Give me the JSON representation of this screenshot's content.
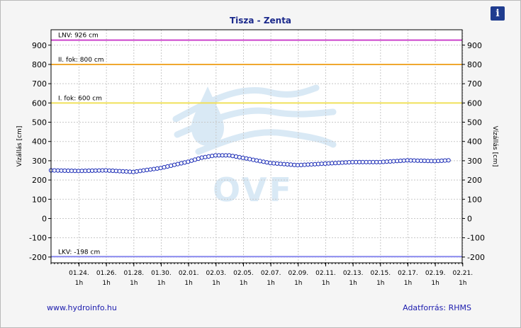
{
  "title": "Tisza - Zenta",
  "info_icon": "info-icon",
  "footer": {
    "link_text": "www.hydroinfo.hu",
    "source_text": "Adatforrás: RHMS"
  },
  "watermark": {
    "text": "OVF"
  },
  "colors": {
    "title": "#1c2a8c",
    "series": "#1a2bb5",
    "lnv": "#cc44cc",
    "second_degree": "#f0a830",
    "first_degree": "#f0e05a",
    "lkv": "#8888ee",
    "background": "#f5f5f5",
    "plot_background": "#ffffff",
    "watermark": "#d9e9f5"
  },
  "chart_data": {
    "type": "line",
    "title": "Tisza - Zenta",
    "ylabel": "Vízállás [cm]",
    "ylabel_right": "Vízállás [cm]",
    "ylim": [
      -230,
      980
    ],
    "yticks": [
      -200,
      -100,
      0,
      100,
      200,
      300,
      400,
      500,
      600,
      700,
      800,
      900
    ],
    "grid": true,
    "x_start": "2025-01-22 00:00",
    "x_end": "2025-02-21 00:00",
    "xticks": [
      {
        "date": "01.24.",
        "hour": "1h"
      },
      {
        "date": "01.26.",
        "hour": "1h"
      },
      {
        "date": "01.28.",
        "hour": "1h"
      },
      {
        "date": "01.30.",
        "hour": "1h"
      },
      {
        "date": "02.01.",
        "hour": "1h"
      },
      {
        "date": "02.03.",
        "hour": "1h"
      },
      {
        "date": "02.05.",
        "hour": "1h"
      },
      {
        "date": "02.07.",
        "hour": "1h"
      },
      {
        "date": "02.09.",
        "hour": "1h"
      },
      {
        "date": "02.11.",
        "hour": "1h"
      },
      {
        "date": "02.13.",
        "hour": "1h"
      },
      {
        "date": "02.15.",
        "hour": "1h"
      },
      {
        "date": "02.17.",
        "hour": "1h"
      },
      {
        "date": "02.19.",
        "hour": "1h"
      },
      {
        "date": "02.21.",
        "hour": "1h"
      }
    ],
    "reference_lines": [
      {
        "label": "LNV: 926 cm",
        "value": 926,
        "color": "#cc44cc"
      },
      {
        "label": "II. fok: 800 cm",
        "value": 800,
        "color": "#f0a830"
      },
      {
        "label": "I. fok: 600 cm",
        "value": 600,
        "color": "#f0e05a"
      },
      {
        "label": "LKV: -198 cm",
        "value": -198,
        "color": "#8888ee"
      }
    ],
    "series": [
      {
        "points": [
          [
            "2025-01-22 00:00",
            250
          ],
          [
            "2025-01-24 00:00",
            247
          ],
          [
            "2025-01-26 00:00",
            250
          ],
          [
            "2025-01-28 00:00",
            242
          ],
          [
            "2025-01-30 00:00",
            262
          ],
          [
            "2025-02-01 00:00",
            295
          ],
          [
            "2025-02-02 00:00",
            316
          ],
          [
            "2025-02-03 00:00",
            328
          ],
          [
            "2025-02-04 00:00",
            328
          ],
          [
            "2025-02-05 00:00",
            315
          ],
          [
            "2025-02-07 00:00",
            288
          ],
          [
            "2025-02-09 00:00",
            277
          ],
          [
            "2025-02-11 00:00",
            285
          ],
          [
            "2025-02-13 00:00",
            293
          ],
          [
            "2025-02-15 00:00",
            293
          ],
          [
            "2025-02-17 00:00",
            302
          ],
          [
            "2025-02-19 00:00",
            298
          ],
          [
            "2025-02-20 00:00",
            302
          ]
        ]
      }
    ]
  }
}
